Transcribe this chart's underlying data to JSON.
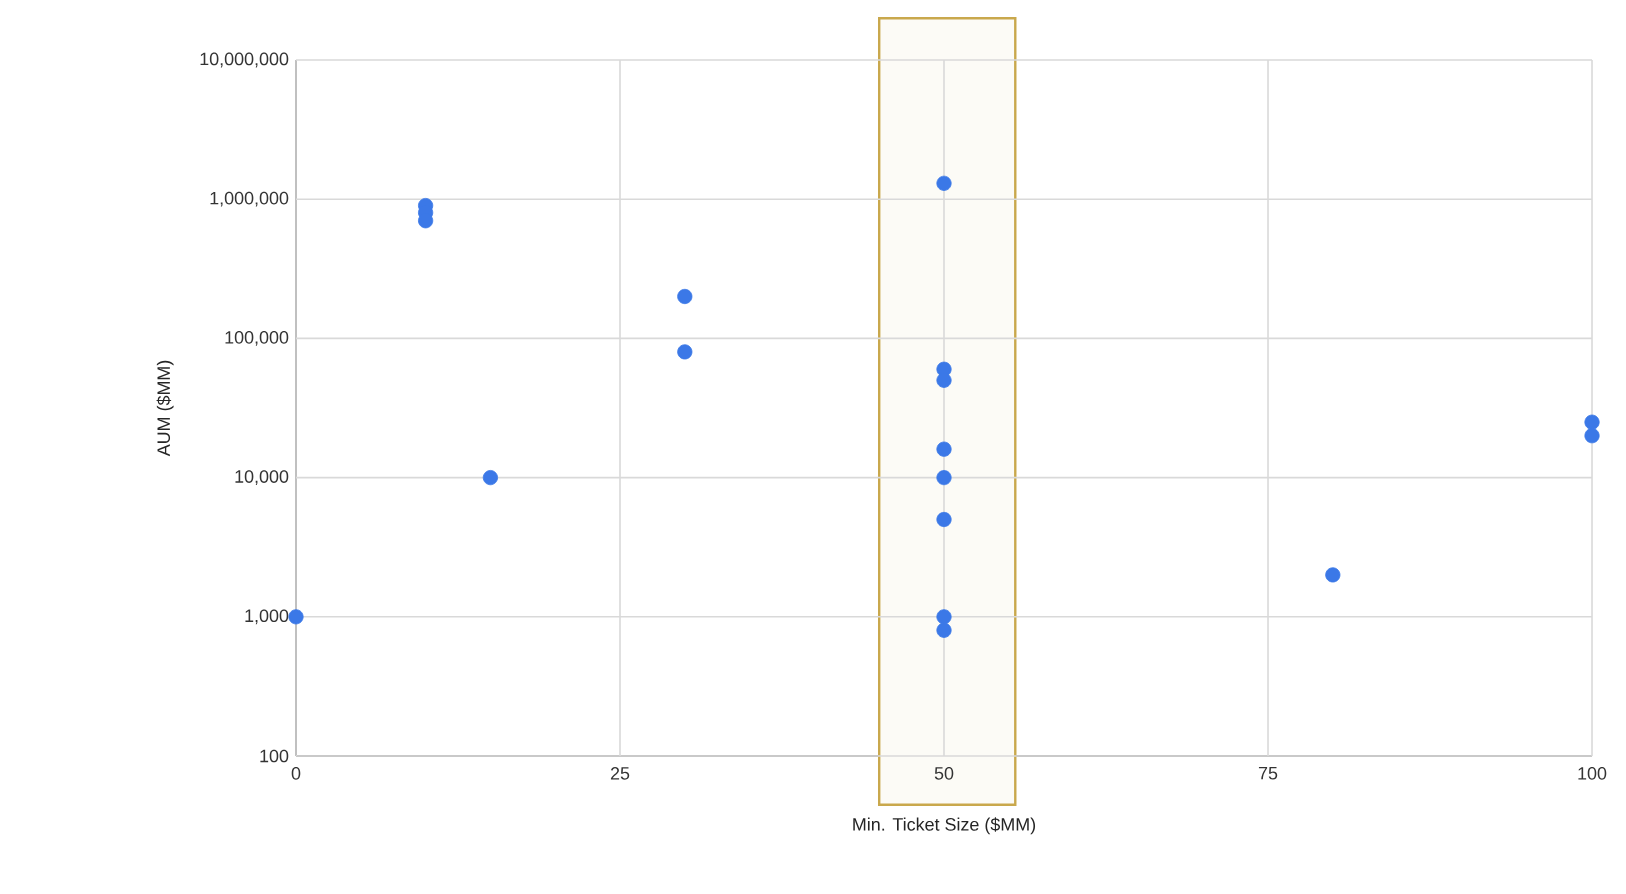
{
  "chart_data": {
    "type": "scatter",
    "xlabel": "Min. Ticket Size ($MM)",
    "ylabel": "AUM ($MM)",
    "x": [
      0,
      10,
      10,
      10,
      15,
      30,
      30,
      50,
      50,
      50,
      50,
      50,
      50,
      50,
      50,
      80,
      100,
      100
    ],
    "values": [
      1000,
      900000,
      800000,
      700000,
      10000,
      200000,
      80000,
      1300000,
      60000,
      50000,
      16000,
      10000,
      5000,
      1000,
      800,
      2000,
      25000,
      20000
    ],
    "color": "#3b78e7",
    "marker": "circle",
    "log": "y",
    "grid": true,
    "xlim": [
      0,
      100
    ],
    "xticks": [
      0,
      25,
      50,
      75,
      100
    ],
    "ylim": [
      100,
      10000000
    ],
    "yticks": [
      {
        "value": 100,
        "label": "100"
      },
      {
        "value": 1000,
        "label": "1,000"
      },
      {
        "value": 10000,
        "label": "10,000"
      },
      {
        "value": 100000,
        "label": "100,000"
      },
      {
        "value": 1000000,
        "label": "1,000,000"
      },
      {
        "value": 10000000,
        "label": "10,000,000"
      }
    ],
    "bands": [
      {
        "axis": "x",
        "from": 45,
        "to": 55.5,
        "color": "#c9a84c"
      }
    ]
  }
}
